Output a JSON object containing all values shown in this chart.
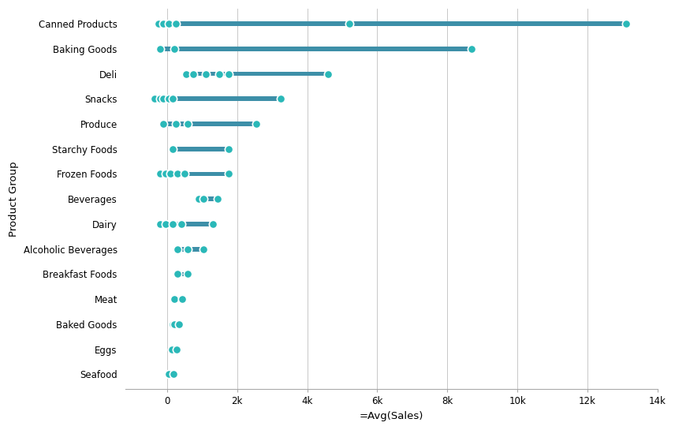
{
  "categories": [
    "Canned Products",
    "Baking Goods",
    "Deli",
    "Snacks",
    "Produce",
    "Starchy Foods",
    "Frozen Foods",
    "Beverages",
    "Dairy",
    "Alcoholic Beverages",
    "Breakfast Foods",
    "Meat",
    "Baked Goods",
    "Eggs",
    "Seafood"
  ],
  "bar_min": [
    -200,
    -150,
    500,
    -350,
    -100,
    150,
    -200,
    850,
    -200,
    250,
    250,
    150,
    150,
    100,
    50
  ],
  "bar_max": [
    13100,
    8700,
    4600,
    3250,
    2550,
    1750,
    1750,
    1450,
    1300,
    1050,
    600,
    430,
    330,
    280,
    230
  ],
  "dot_positions": [
    [
      -250,
      -100,
      50,
      250,
      5200,
      13100
    ],
    [
      -200,
      200,
      8700
    ],
    [
      550,
      750,
      1100,
      1500,
      1750,
      4600
    ],
    [
      -350,
      -200,
      -100,
      50,
      150,
      3250
    ],
    [
      -100,
      250,
      600,
      2550
    ],
    [
      150,
      1750
    ],
    [
      -200,
      -50,
      100,
      300,
      500,
      1750
    ],
    [
      900,
      1050,
      1450
    ],
    [
      -200,
      -50,
      150,
      400,
      1300
    ],
    [
      300,
      600,
      1050
    ],
    [
      300,
      600
    ],
    [
      200,
      430
    ],
    [
      150,
      200,
      330
    ],
    [
      130,
      280
    ],
    [
      50,
      180
    ]
  ],
  "bar_color": "#3d8fa8",
  "dot_color": "#2ab8b8",
  "dot_edge_color": "#ffffff",
  "bar_height": 0.18,
  "dot_size": 55,
  "xlabel": "=Avg(Sales)",
  "ylabel": "Product Group",
  "xlim": [
    -1200,
    14000
  ],
  "xticks": [
    0,
    2000,
    4000,
    6000,
    8000,
    10000,
    12000,
    14000
  ],
  "xticklabels": [
    "0",
    "2k",
    "4k",
    "6k",
    "8k",
    "10k",
    "12k",
    "14k"
  ],
  "background_color": "#ffffff",
  "grid_color": "#c8c8c8",
  "figwidth": 8.56,
  "figheight": 5.45,
  "dpi": 100
}
